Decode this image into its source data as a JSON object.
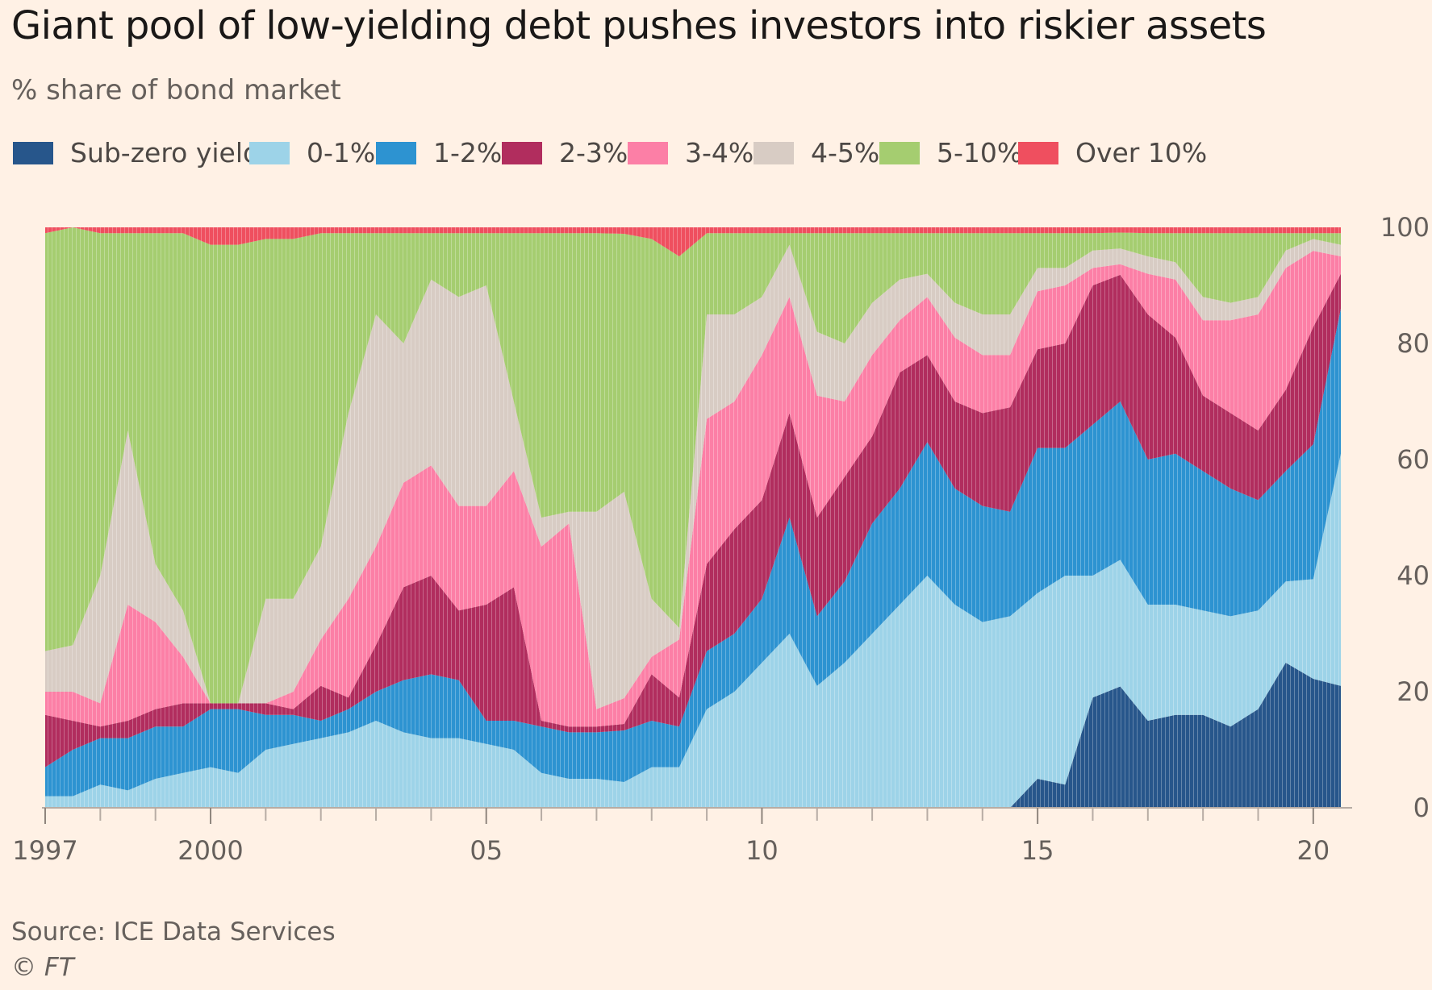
{
  "header": {
    "title": "Giant pool of low-yielding debt pushes investors into riskier assets",
    "subtitle": "% share of bond market"
  },
  "footer": {
    "source": "Source: ICE Data Services",
    "copyright_symbol": "©",
    "copyright_name": "FT"
  },
  "chart_data": {
    "type": "area",
    "stacked": true,
    "title": "Giant pool of low-yielding debt pushes investors into riskier assets",
    "ylabel": "% share of bond market",
    "ylim": [
      0,
      100
    ],
    "xlim": [
      1997.0,
      2020.5
    ],
    "y_ticks": [
      0,
      20,
      40,
      60,
      80,
      100
    ],
    "y_axis_side": "right",
    "x_tick_labels": [
      {
        "x": 1997,
        "label": "1997"
      },
      {
        "x": 2000,
        "label": "2000"
      },
      {
        "x": 2005,
        "label": "05"
      },
      {
        "x": 2010,
        "label": "10"
      },
      {
        "x": 2015,
        "label": "15"
      },
      {
        "x": 2020,
        "label": "20"
      }
    ],
    "x_minor_ticks": [
      1998,
      1999,
      2001,
      2002,
      2003,
      2004,
      2006,
      2007,
      2008,
      2009,
      2011,
      2012,
      2013,
      2014,
      2016,
      2017,
      2018,
      2019
    ],
    "legend_position": "top-left",
    "x": [
      1997.0,
      1997.5,
      1998.0,
      1998.5,
      1999.0,
      1999.5,
      2000.0,
      2000.5,
      2001.0,
      2001.5,
      2002.0,
      2002.5,
      2003.0,
      2003.5,
      2004.0,
      2004.5,
      2005.0,
      2005.5,
      2006.0,
      2006.5,
      2007.0,
      2007.5,
      2008.0,
      2008.5,
      2009.0,
      2009.5,
      2010.0,
      2010.5,
      2011.0,
      2011.5,
      2012.0,
      2012.5,
      2013.0,
      2013.5,
      2014.0,
      2014.5,
      2015.0,
      2015.5,
      2016.0,
      2016.5,
      2017.0,
      2017.5,
      2018.0,
      2018.5,
      2019.0,
      2019.5,
      2020.0,
      2020.5
    ],
    "series": [
      {
        "name": "Sub-zero yield",
        "color": "#27568b",
        "values": [
          0,
          0,
          0,
          0,
          0,
          0,
          0,
          0,
          0,
          0,
          0,
          0,
          0,
          0,
          0,
          0,
          0,
          0,
          0,
          0,
          0,
          0,
          0,
          0,
          0,
          0,
          0,
          0,
          0,
          0,
          0,
          0,
          0,
          0,
          0,
          0,
          5,
          4,
          19,
          23,
          15,
          16,
          16,
          14,
          17,
          25,
          22,
          21
        ]
      },
      {
        "name": "0-1%",
        "color": "#9dd3e8",
        "values": [
          2,
          2,
          4,
          3,
          5,
          6,
          7,
          6,
          10,
          11,
          12,
          13,
          15,
          13,
          12,
          12,
          11,
          10,
          6,
          5,
          5,
          4,
          7,
          7,
          17,
          20,
          25,
          30,
          21,
          25,
          30,
          35,
          40,
          35,
          32,
          33,
          32,
          36,
          21,
          24,
          20,
          19,
          18,
          19,
          17,
          14,
          17,
          40
        ]
      },
      {
        "name": "1-2%",
        "color": "#2d93d1",
        "values": [
          5,
          8,
          8,
          9,
          9,
          8,
          10,
          11,
          6,
          5,
          3,
          4,
          5,
          9,
          11,
          10,
          4,
          5,
          8,
          8,
          8,
          8,
          8,
          7,
          10,
          10,
          11,
          20,
          12,
          14,
          19,
          20,
          23,
          20,
          20,
          18,
          25,
          22,
          26,
          30,
          25,
          26,
          24,
          22,
          19,
          19,
          23,
          25
        ]
      },
      {
        "name": "2-3%",
        "color": "#b12d5e",
        "values": [
          9,
          5,
          2,
          3,
          3,
          4,
          1,
          1,
          2,
          1,
          6,
          2,
          8,
          16,
          17,
          12,
          20,
          23,
          1,
          1,
          1,
          1,
          8,
          5,
          15,
          18,
          17,
          18,
          17,
          18,
          15,
          20,
          15,
          15,
          16,
          18,
          17,
          18,
          24,
          24,
          25,
          20,
          13,
          13,
          12,
          14,
          20,
          6
        ]
      },
      {
        "name": "3-4%",
        "color": "#fc7fa6",
        "values": [
          4,
          5,
          4,
          20,
          15,
          8,
          0,
          0,
          0,
          3,
          8,
          17,
          17,
          18,
          19,
          18,
          17,
          20,
          30,
          35,
          3,
          4,
          3,
          10,
          25,
          22,
          25,
          20,
          21,
          13,
          14,
          9,
          10,
          11,
          10,
          9,
          10,
          10,
          3,
          2,
          7,
          10,
          13,
          16,
          20,
          21,
          13,
          3
        ]
      },
      {
        "name": "4-5%",
        "color": "#d8ccc4",
        "values": [
          7,
          8,
          22,
          30,
          10,
          8,
          0,
          0,
          18,
          16,
          16,
          32,
          40,
          24,
          32,
          36,
          38,
          12,
          5,
          2,
          34,
          32,
          10,
          2,
          18,
          15,
          10,
          9,
          11,
          10,
          9,
          7,
          4,
          6,
          7,
          7,
          4,
          3,
          3,
          3,
          3,
          3,
          4,
          3,
          3,
          3,
          2,
          2
        ]
      },
      {
        "name": "5-10%",
        "color": "#a5cd70",
        "values": [
          72,
          72,
          59,
          34,
          57,
          65,
          79,
          79,
          62,
          62,
          54,
          31,
          14,
          19,
          8,
          11,
          9,
          29,
          49,
          48,
          48,
          40,
          62,
          64,
          14,
          14,
          11,
          2,
          17,
          19,
          12,
          8,
          7,
          12,
          14,
          14,
          6,
          6,
          3,
          3,
          4,
          5,
          11,
          12,
          11,
          3,
          1,
          2
        ]
      },
      {
        "name": "Over 10%",
        "color": "#ef4f5f",
        "values": [
          1,
          0,
          1,
          1,
          1,
          1,
          3,
          3,
          2,
          2,
          1,
          1,
          1,
          1,
          1,
          1,
          1,
          1,
          1,
          1,
          1,
          1,
          2,
          5,
          1,
          1,
          1,
          1,
          1,
          1,
          1,
          1,
          1,
          1,
          1,
          1,
          1,
          1,
          1,
          1,
          1,
          1,
          1,
          1,
          1,
          1,
          1,
          1
        ]
      }
    ]
  }
}
